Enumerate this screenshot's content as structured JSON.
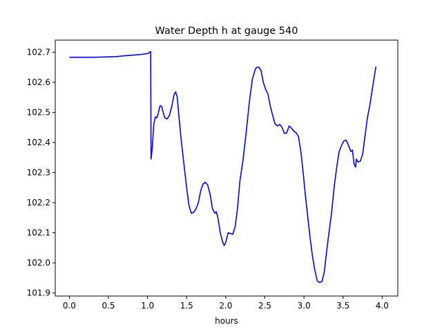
{
  "chart_data": {
    "type": "line",
    "title": "Water Depth h at gauge 540",
    "xlabel": "hours",
    "ylabel": "",
    "xlim": [
      -0.18,
      4.2
    ],
    "ylim": [
      101.89,
      102.74
    ],
    "x_ticks": [
      0.0,
      0.5,
      1.0,
      1.5,
      2.0,
      2.5,
      3.0,
      3.5,
      4.0
    ],
    "x_tick_labels": [
      "0.0",
      "0.5",
      "1.0",
      "1.5",
      "2.0",
      "2.5",
      "3.0",
      "3.5",
      "4.0"
    ],
    "y_ticks": [
      101.9,
      102.0,
      102.1,
      102.2,
      102.3,
      102.4,
      102.5,
      102.6,
      102.7
    ],
    "y_tick_labels": [
      "101.9",
      "102.0",
      "102.1",
      "102.2",
      "102.3",
      "102.4",
      "102.5",
      "102.6",
      "102.7"
    ],
    "grid": false,
    "series": [
      {
        "color": "#0000ff",
        "points": [
          [
            0.0,
            102.683
          ],
          [
            0.3,
            102.683
          ],
          [
            0.6,
            102.685
          ],
          [
            0.7,
            102.688
          ],
          [
            0.9,
            102.692
          ],
          [
            1.0,
            102.695
          ],
          [
            1.04,
            102.702
          ],
          [
            1.045,
            102.345
          ],
          [
            1.06,
            102.38
          ],
          [
            1.08,
            102.46
          ],
          [
            1.1,
            102.485
          ],
          [
            1.12,
            102.482
          ],
          [
            1.14,
            102.5
          ],
          [
            1.16,
            102.522
          ],
          [
            1.18,
            102.52
          ],
          [
            1.2,
            102.5
          ],
          [
            1.22,
            102.482
          ],
          [
            1.25,
            102.478
          ],
          [
            1.28,
            102.49
          ],
          [
            1.31,
            102.52
          ],
          [
            1.34,
            102.56
          ],
          [
            1.36,
            102.568
          ],
          [
            1.38,
            102.55
          ],
          [
            1.4,
            102.49
          ],
          [
            1.43,
            102.41
          ],
          [
            1.46,
            102.34
          ],
          [
            1.5,
            102.25
          ],
          [
            1.53,
            102.19
          ],
          [
            1.56,
            102.165
          ],
          [
            1.59,
            102.168
          ],
          [
            1.62,
            102.18
          ],
          [
            1.65,
            102.2
          ],
          [
            1.68,
            102.24
          ],
          [
            1.71,
            102.262
          ],
          [
            1.74,
            102.268
          ],
          [
            1.77,
            102.258
          ],
          [
            1.8,
            102.228
          ],
          [
            1.83,
            102.18
          ],
          [
            1.86,
            102.165
          ],
          [
            1.88,
            102.17
          ],
          [
            1.9,
            102.15
          ],
          [
            1.93,
            102.1
          ],
          [
            1.96,
            102.07
          ],
          [
            1.98,
            102.058
          ],
          [
            2.0,
            102.068
          ],
          [
            2.03,
            102.1
          ],
          [
            2.06,
            102.098
          ],
          [
            2.09,
            102.095
          ],
          [
            2.12,
            102.12
          ],
          [
            2.15,
            102.18
          ],
          [
            2.18,
            102.27
          ],
          [
            2.22,
            102.34
          ],
          [
            2.26,
            102.43
          ],
          [
            2.3,
            102.53
          ],
          [
            2.34,
            102.61
          ],
          [
            2.38,
            102.645
          ],
          [
            2.4,
            102.65
          ],
          [
            2.42,
            102.65
          ],
          [
            2.45,
            102.64
          ],
          [
            2.48,
            102.6
          ],
          [
            2.51,
            102.577
          ],
          [
            2.54,
            102.56
          ],
          [
            2.57,
            102.52
          ],
          [
            2.6,
            102.49
          ],
          [
            2.63,
            102.462
          ],
          [
            2.66,
            102.455
          ],
          [
            2.69,
            102.46
          ],
          [
            2.72,
            102.45
          ],
          [
            2.75,
            102.43
          ],
          [
            2.78,
            102.432
          ],
          [
            2.81,
            102.455
          ],
          [
            2.84,
            102.448
          ],
          [
            2.87,
            102.438
          ],
          [
            2.9,
            102.432
          ],
          [
            2.93,
            102.42
          ],
          [
            2.96,
            102.37
          ],
          [
            2.99,
            102.3
          ],
          [
            3.02,
            102.22
          ],
          [
            3.05,
            102.15
          ],
          [
            3.08,
            102.08
          ],
          [
            3.11,
            102.02
          ],
          [
            3.14,
            101.975
          ],
          [
            3.17,
            101.94
          ],
          [
            3.2,
            101.935
          ],
          [
            3.23,
            101.938
          ],
          [
            3.26,
            101.97
          ],
          [
            3.3,
            102.06
          ],
          [
            3.35,
            102.16
          ],
          [
            3.39,
            102.26
          ],
          [
            3.42,
            102.32
          ],
          [
            3.45,
            102.37
          ],
          [
            3.48,
            102.39
          ],
          [
            3.51,
            102.405
          ],
          [
            3.54,
            102.408
          ],
          [
            3.57,
            102.39
          ],
          [
            3.6,
            102.37
          ],
          [
            3.62,
            102.375
          ],
          [
            3.64,
            102.33
          ],
          [
            3.66,
            102.318
          ],
          [
            3.67,
            102.345
          ],
          [
            3.69,
            102.335
          ],
          [
            3.72,
            102.338
          ],
          [
            3.75,
            102.36
          ],
          [
            3.78,
            102.42
          ],
          [
            3.81,
            102.48
          ],
          [
            3.84,
            102.52
          ],
          [
            3.87,
            102.57
          ],
          [
            3.9,
            102.62
          ],
          [
            3.92,
            102.652
          ]
        ]
      }
    ]
  }
}
